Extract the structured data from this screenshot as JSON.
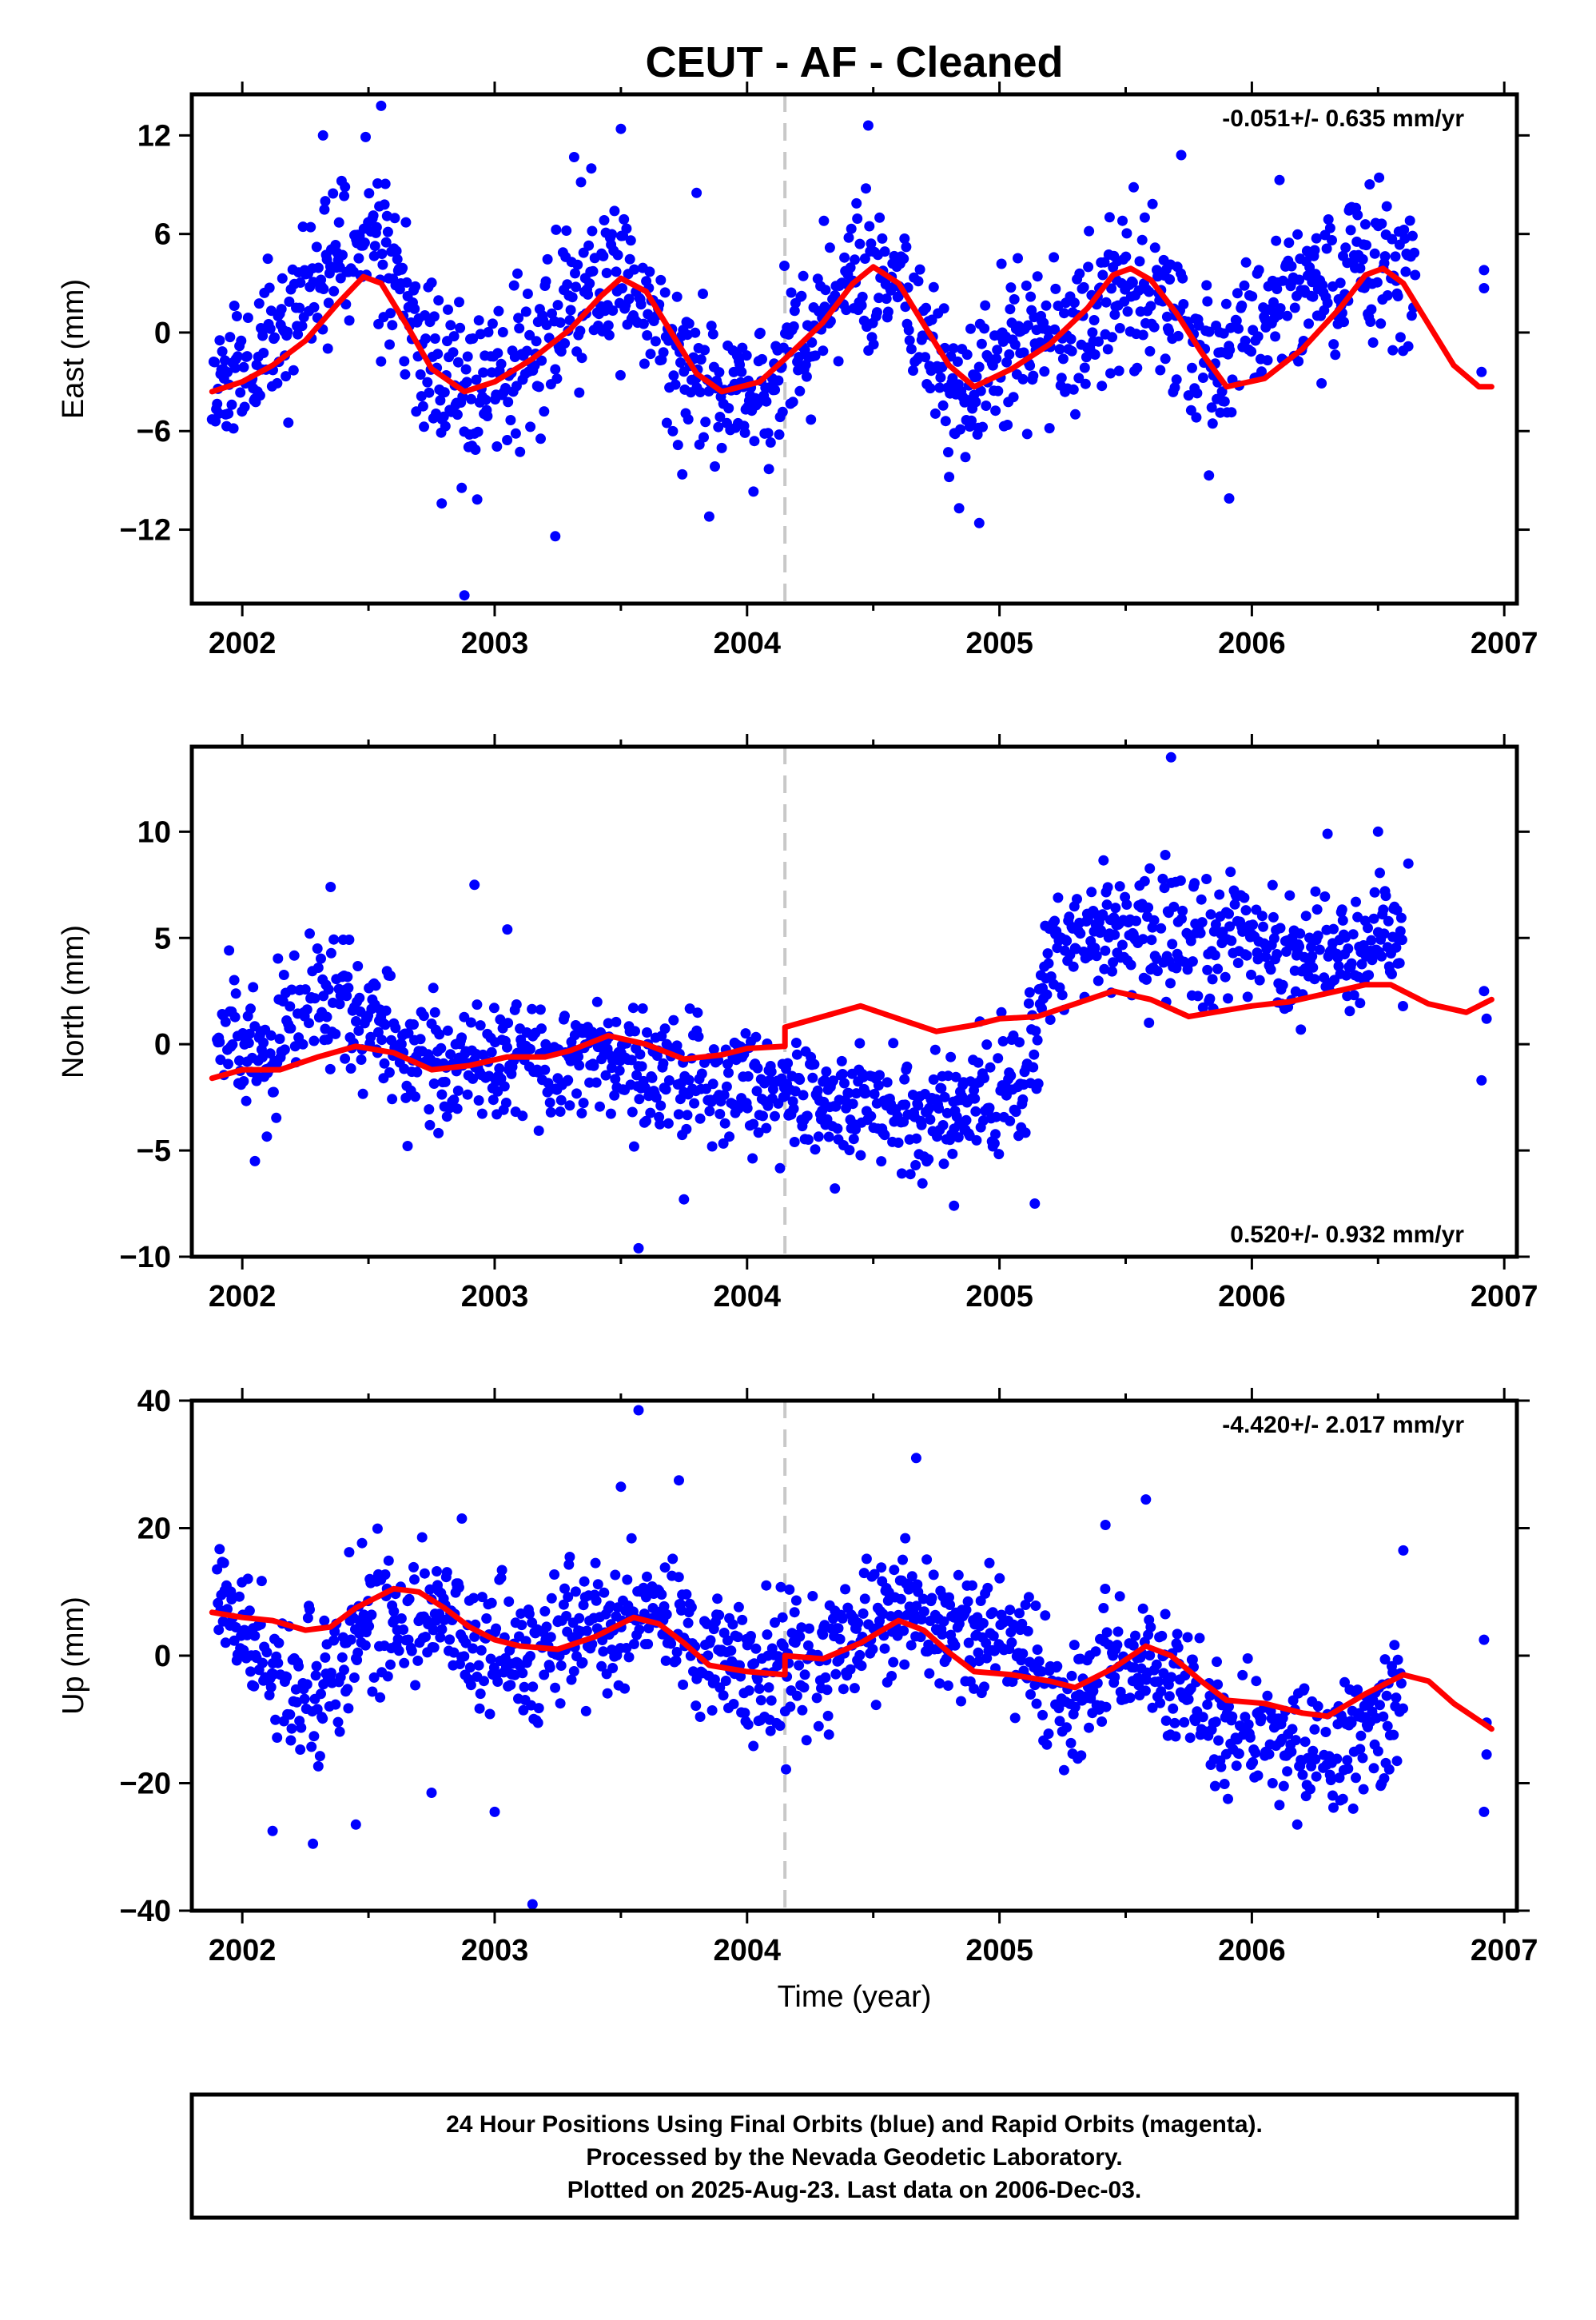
{
  "title": "CEUT  - AF - Cleaned",
  "xlabel": "Time (year)",
  "footer": {
    "line1": "24 Hour Positions Using Final Orbits (blue) and Rapid Orbits (magenta).",
    "line2": "Processed by the Nevada Geodetic Laboratory.",
    "line3": "Plotted on 2025-Aug-23. Last data on 2006-Dec-03."
  },
  "colors": {
    "points": "#0000ff",
    "model": "#ff0000",
    "break_line": "#c8c8c8"
  },
  "chart_data": [
    {
      "type": "scatter",
      "name": "east",
      "ylabel": "East (mm)",
      "rate_label": "-0.051+/- 0.635 mm/yr",
      "rate_position": "top-right",
      "xlim": [
        2001.8,
        2007.05
      ],
      "ylim": [
        -16.5,
        14.5
      ],
      "xticks": [
        2002,
        2003,
        2004,
        2005,
        2006,
        2007
      ],
      "yticks": [
        12,
        6,
        0,
        -6,
        -12
      ],
      "break_x": 2004.15,
      "grid": false,
      "model": [
        [
          2001.88,
          -3.6
        ],
        [
          2002.0,
          -3.0
        ],
        [
          2002.12,
          -2.0
        ],
        [
          2002.25,
          -0.5
        ],
        [
          2002.38,
          1.8
        ],
        [
          2002.48,
          3.4
        ],
        [
          2002.55,
          3.0
        ],
        [
          2002.65,
          0.5
        ],
        [
          2002.75,
          -2.2
        ],
        [
          2002.88,
          -3.6
        ],
        [
          2003.0,
          -3.0
        ],
        [
          2003.15,
          -1.6
        ],
        [
          2003.3,
          0.2
        ],
        [
          2003.42,
          2.2
        ],
        [
          2003.5,
          3.3
        ],
        [
          2003.6,
          2.5
        ],
        [
          2003.7,
          0.0
        ],
        [
          2003.8,
          -2.5
        ],
        [
          2003.9,
          -3.6
        ],
        [
          2004.05,
          -3.0
        ],
        [
          2004.15,
          -1.6
        ],
        [
          2004.3,
          0.6
        ],
        [
          2004.42,
          3.0
        ],
        [
          2004.5,
          4.0
        ],
        [
          2004.6,
          3.0
        ],
        [
          2004.7,
          0.5
        ],
        [
          2004.8,
          -2.0
        ],
        [
          2004.9,
          -3.3
        ],
        [
          2005.05,
          -2.2
        ],
        [
          2005.2,
          -0.7
        ],
        [
          2005.35,
          1.5
        ],
        [
          2005.45,
          3.5
        ],
        [
          2005.52,
          3.9
        ],
        [
          2005.6,
          3.2
        ],
        [
          2005.7,
          1.2
        ],
        [
          2005.8,
          -1.2
        ],
        [
          2005.9,
          -3.3
        ],
        [
          2006.05,
          -2.8
        ],
        [
          2006.2,
          -1.0
        ],
        [
          2006.35,
          1.5
        ],
        [
          2006.45,
          3.5
        ],
        [
          2006.52,
          3.9
        ],
        [
          2006.6,
          3.0
        ],
        [
          2006.7,
          0.5
        ],
        [
          2006.8,
          -2.0
        ],
        [
          2006.9,
          -3.3
        ],
        [
          2006.95,
          -3.3
        ]
      ],
      "cluster_centers": [
        [
          2001.88,
          -3.0
        ],
        [
          2002.0,
          -2.5
        ],
        [
          2002.12,
          -1.0
        ],
        [
          2002.25,
          2.0
        ],
        [
          2002.38,
          5.5
        ],
        [
          2002.5,
          6.0
        ],
        [
          2002.6,
          4.0
        ],
        [
          2002.7,
          -1.0
        ],
        [
          2002.8,
          -2.5
        ],
        [
          2002.9,
          -4.0
        ],
        [
          2003.0,
          -3.0
        ],
        [
          2003.1,
          -2.0
        ],
        [
          2003.2,
          -1.0
        ],
        [
          2003.3,
          1.5
        ],
        [
          2003.4,
          3.0
        ],
        [
          2003.5,
          3.5
        ],
        [
          2003.6,
          2.0
        ],
        [
          2003.7,
          -1.0
        ],
        [
          2003.8,
          -2.5
        ],
        [
          2003.9,
          -3.5
        ],
        [
          2004.0,
          -3.5
        ],
        [
          2004.1,
          -3.0
        ],
        [
          2004.2,
          -0.5
        ],
        [
          2004.3,
          1.0
        ],
        [
          2004.4,
          3.5
        ],
        [
          2004.5,
          4.0
        ],
        [
          2004.6,
          2.0
        ],
        [
          2004.7,
          -1.0
        ],
        [
          2004.8,
          -3.5
        ],
        [
          2004.9,
          -4.0
        ],
        [
          2005.0,
          -2.0
        ],
        [
          2005.1,
          -0.5
        ],
        [
          2005.2,
          -1.0
        ],
        [
          2005.3,
          -0.5
        ],
        [
          2005.4,
          1.5
        ],
        [
          2005.5,
          3.0
        ],
        [
          2005.6,
          2.0
        ],
        [
          2005.7,
          0.0
        ],
        [
          2005.8,
          -1.0
        ],
        [
          2005.9,
          -2.5
        ],
        [
          2006.0,
          0.5
        ],
        [
          2006.1,
          1.5
        ],
        [
          2006.2,
          2.0
        ],
        [
          2006.3,
          3.0
        ],
        [
          2006.4,
          4.0
        ],
        [
          2006.5,
          5.0
        ],
        [
          2006.55,
          5.5
        ],
        [
          2006.6,
          3.0
        ]
      ],
      "spread": 2.4,
      "outliers": [
        [
          2002.32,
          12.0
        ],
        [
          2002.55,
          13.8
        ],
        [
          2003.5,
          12.4
        ],
        [
          2003.8,
          8.5
        ],
        [
          2004.48,
          12.6
        ],
        [
          2005.72,
          10.8
        ],
        [
          2005.83,
          -8.7
        ],
        [
          2005.91,
          -10.1
        ],
        [
          2002.88,
          -16.0
        ],
        [
          2003.24,
          -12.4
        ],
        [
          2002.79,
          -10.4
        ],
        [
          2003.85,
          -11.2
        ],
        [
          2004.84,
          -10.7
        ],
        [
          2004.92,
          -11.6
        ],
        [
          2006.92,
          3.8
        ],
        [
          2006.92,
          2.7
        ],
        [
          2006.91,
          -2.4
        ]
      ]
    },
    {
      "type": "scatter",
      "name": "north",
      "ylabel": "North (mm)",
      "rate_label": "0.520+/- 0.932 mm/yr",
      "rate_position": "bottom-right",
      "xlim": [
        2001.8,
        2007.05
      ],
      "ylim": [
        -10,
        14
      ],
      "xticks": [
        2002,
        2003,
        2004,
        2005,
        2006,
        2007
      ],
      "yticks": [
        10,
        5,
        0,
        -5,
        -10
      ],
      "break_x": 2004.15,
      "grid": false,
      "model": [
        [
          2001.88,
          -1.6
        ],
        [
          2002.0,
          -1.2
        ],
        [
          2002.15,
          -1.2
        ],
        [
          2002.3,
          -0.6
        ],
        [
          2002.45,
          -0.1
        ],
        [
          2002.6,
          -0.4
        ],
        [
          2002.75,
          -1.2
        ],
        [
          2002.9,
          -1.0
        ],
        [
          2003.05,
          -0.6
        ],
        [
          2003.2,
          -0.6
        ],
        [
          2003.3,
          -0.3
        ],
        [
          2003.45,
          0.4
        ],
        [
          2003.6,
          0.0
        ],
        [
          2003.75,
          -0.7
        ],
        [
          2003.9,
          -0.5
        ],
        [
          2004.0,
          -0.2
        ],
        [
          2004.15,
          -0.1
        ],
        [
          2004.15,
          0.8
        ],
        [
          2004.3,
          1.3
        ],
        [
          2004.45,
          1.8
        ],
        [
          2004.6,
          1.2
        ],
        [
          2004.75,
          0.6
        ],
        [
          2004.9,
          0.9
        ],
        [
          2005.0,
          1.2
        ],
        [
          2005.15,
          1.3
        ],
        [
          2005.3,
          1.9
        ],
        [
          2005.45,
          2.5
        ],
        [
          2005.6,
          2.1
        ],
        [
          2005.75,
          1.3
        ],
        [
          2005.9,
          1.6
        ],
        [
          2006.0,
          1.8
        ],
        [
          2006.15,
          2.0
        ],
        [
          2006.3,
          2.4
        ],
        [
          2006.45,
          2.8
        ],
        [
          2006.55,
          2.8
        ],
        [
          2006.7,
          1.9
        ],
        [
          2006.85,
          1.5
        ],
        [
          2006.95,
          2.1
        ]
      ],
      "cluster_centers": [
        [
          2001.9,
          0.5
        ],
        [
          2002.0,
          0.0
        ],
        [
          2002.1,
          -0.5
        ],
        [
          2002.2,
          1.5
        ],
        [
          2002.3,
          2.5
        ],
        [
          2002.4,
          2.0
        ],
        [
          2002.5,
          1.0
        ],
        [
          2002.6,
          0.0
        ],
        [
          2002.7,
          -1.0
        ],
        [
          2002.8,
          -1.0
        ],
        [
          2002.9,
          -0.5
        ],
        [
          2003.0,
          -0.8
        ],
        [
          2003.1,
          -0.5
        ],
        [
          2003.2,
          -1.0
        ],
        [
          2003.3,
          -1.0
        ],
        [
          2003.4,
          0.0
        ],
        [
          2003.5,
          -1.0
        ],
        [
          2003.6,
          -1.5
        ],
        [
          2003.7,
          -1.5
        ],
        [
          2003.8,
          -1.5
        ],
        [
          2003.9,
          -1.8
        ],
        [
          2004.0,
          -1.5
        ],
        [
          2004.1,
          -2.0
        ],
        [
          2004.2,
          -2.5
        ],
        [
          2004.3,
          -2.5
        ],
        [
          2004.4,
          -2.5
        ],
        [
          2004.5,
          -2.5
        ],
        [
          2004.6,
          -3.0
        ],
        [
          2004.7,
          -3.5
        ],
        [
          2004.8,
          -3.0
        ],
        [
          2004.9,
          -2.5
        ],
        [
          2005.0,
          -2.5
        ],
        [
          2005.1,
          -2.5
        ],
        [
          2005.2,
          4.5
        ],
        [
          2005.3,
          5.0
        ],
        [
          2005.4,
          5.0
        ],
        [
          2005.5,
          5.5
        ],
        [
          2005.6,
          5.0
        ],
        [
          2005.7,
          5.0
        ],
        [
          2005.8,
          4.5
        ],
        [
          2005.9,
          5.0
        ],
        [
          2006.0,
          5.0
        ],
        [
          2006.1,
          4.5
        ],
        [
          2006.2,
          4.0
        ],
        [
          2006.3,
          4.0
        ],
        [
          2006.4,
          3.5
        ],
        [
          2006.5,
          5.0
        ],
        [
          2006.55,
          5.0
        ]
      ],
      "spread": 1.4,
      "outliers": [
        [
          2002.35,
          7.4
        ],
        [
          2002.92,
          7.5
        ],
        [
          2003.05,
          5.4
        ],
        [
          2005.68,
          13.5
        ],
        [
          2006.3,
          9.9
        ],
        [
          2006.5,
          10.0
        ],
        [
          2006.62,
          8.5
        ],
        [
          2003.57,
          -9.6
        ],
        [
          2003.75,
          -7.3
        ],
        [
          2004.82,
          -7.6
        ],
        [
          2005.14,
          -7.5
        ],
        [
          2002.05,
          -5.5
        ],
        [
          2006.92,
          2.5
        ],
        [
          2006.91,
          -1.7
        ],
        [
          2006.93,
          1.2
        ]
      ]
    },
    {
      "type": "scatter",
      "name": "up",
      "ylabel": "Up (mm)",
      "rate_label": "-4.420+/- 2.017 mm/yr",
      "rate_position": "top-right",
      "xlim": [
        2001.8,
        2007.05
      ],
      "ylim": [
        -40,
        40
      ],
      "xticks": [
        2002,
        2003,
        2004,
        2005,
        2006,
        2007
      ],
      "yticks": [
        40,
        20,
        0,
        -20,
        -40
      ],
      "break_x": 2004.15,
      "grid": false,
      "model": [
        [
          2001.88,
          6.8
        ],
        [
          2002.0,
          6.0
        ],
        [
          2002.12,
          5.5
        ],
        [
          2002.25,
          4.0
        ],
        [
          2002.35,
          4.5
        ],
        [
          2002.45,
          7.5
        ],
        [
          2002.6,
          10.5
        ],
        [
          2002.7,
          10.0
        ],
        [
          2002.8,
          7.5
        ],
        [
          2002.9,
          4.5
        ],
        [
          2003.0,
          2.5
        ],
        [
          2003.1,
          1.5
        ],
        [
          2003.25,
          1.0
        ],
        [
          2003.4,
          3.0
        ],
        [
          2003.55,
          6.0
        ],
        [
          2003.65,
          5.0
        ],
        [
          2003.75,
          2.0
        ],
        [
          2003.85,
          -1.5
        ],
        [
          2004.0,
          -2.5
        ],
        [
          2004.15,
          -3.0
        ],
        [
          2004.15,
          0.0
        ],
        [
          2004.3,
          -0.5
        ],
        [
          2004.45,
          2.0
        ],
        [
          2004.6,
          5.5
        ],
        [
          2004.7,
          4.0
        ],
        [
          2004.8,
          0.5
        ],
        [
          2004.9,
          -2.5
        ],
        [
          2005.05,
          -3.0
        ],
        [
          2005.2,
          -4.0
        ],
        [
          2005.3,
          -5.0
        ],
        [
          2005.45,
          -2.0
        ],
        [
          2005.58,
          1.5
        ],
        [
          2005.68,
          0.0
        ],
        [
          2005.8,
          -4.0
        ],
        [
          2005.9,
          -7.0
        ],
        [
          2006.05,
          -7.5
        ],
        [
          2006.2,
          -9.0
        ],
        [
          2006.3,
          -9.5
        ],
        [
          2006.45,
          -6.0
        ],
        [
          2006.6,
          -3.0
        ],
        [
          2006.7,
          -4.0
        ],
        [
          2006.8,
          -7.5
        ],
        [
          2006.95,
          -11.5
        ]
      ],
      "cluster_centers": [
        [
          2001.9,
          8.0
        ],
        [
          2002.0,
          4.0
        ],
        [
          2002.1,
          0.0
        ],
        [
          2002.2,
          -6.0
        ],
        [
          2002.3,
          -4.0
        ],
        [
          2002.4,
          0.0
        ],
        [
          2002.5,
          4.0
        ],
        [
          2002.6,
          6.0
        ],
        [
          2002.7,
          8.0
        ],
        [
          2002.8,
          6.0
        ],
        [
          2002.9,
          2.0
        ],
        [
          2003.0,
          0.0
        ],
        [
          2003.1,
          -2.0
        ],
        [
          2003.2,
          0.0
        ],
        [
          2003.3,
          2.0
        ],
        [
          2003.4,
          4.0
        ],
        [
          2003.5,
          6.0
        ],
        [
          2003.6,
          8.0
        ],
        [
          2003.7,
          6.0
        ],
        [
          2003.8,
          2.0
        ],
        [
          2003.9,
          0.0
        ],
        [
          2004.0,
          -2.0
        ],
        [
          2004.1,
          -2.0
        ],
        [
          2004.2,
          0.0
        ],
        [
          2004.3,
          -2.0
        ],
        [
          2004.4,
          2.0
        ],
        [
          2004.5,
          6.0
        ],
        [
          2004.6,
          10.0
        ],
        [
          2004.7,
          8.0
        ],
        [
          2004.8,
          4.0
        ],
        [
          2004.9,
          2.0
        ],
        [
          2005.0,
          4.0
        ],
        [
          2005.1,
          2.0
        ],
        [
          2005.2,
          -6.0
        ],
        [
          2005.3,
          -8.0
        ],
        [
          2005.4,
          -4.0
        ],
        [
          2005.5,
          -2.0
        ],
        [
          2005.6,
          0.0
        ],
        [
          2005.7,
          -4.0
        ],
        [
          2005.8,
          -10.0
        ],
        [
          2005.9,
          -12.0
        ],
        [
          2006.0,
          -12.0
        ],
        [
          2006.1,
          -13.0
        ],
        [
          2006.2,
          -14.0
        ],
        [
          2006.3,
          -16.0
        ],
        [
          2006.4,
          -12.0
        ],
        [
          2006.5,
          -10.0
        ],
        [
          2006.55,
          -8.0
        ]
      ],
      "spread": 5.0,
      "outliers": [
        [
          2003.57,
          38.5
        ],
        [
          2003.5,
          26.5
        ],
        [
          2003.73,
          27.5
        ],
        [
          2004.67,
          31.0
        ],
        [
          2002.87,
          21.5
        ],
        [
          2005.42,
          20.5
        ],
        [
          2005.58,
          24.5
        ],
        [
          2006.6,
          16.5
        ],
        [
          2002.12,
          -27.5
        ],
        [
          2002.28,
          -29.5
        ],
        [
          2002.45,
          -26.5
        ],
        [
          2002.75,
          -21.5
        ],
        [
          2003.0,
          -24.5
        ],
        [
          2003.15,
          -39.0
        ],
        [
          2006.18,
          -26.5
        ],
        [
          2006.92,
          -24.5
        ],
        [
          2006.92,
          2.5
        ],
        [
          2006.93,
          -10.5
        ],
        [
          2006.93,
          -15.5
        ]
      ]
    }
  ]
}
